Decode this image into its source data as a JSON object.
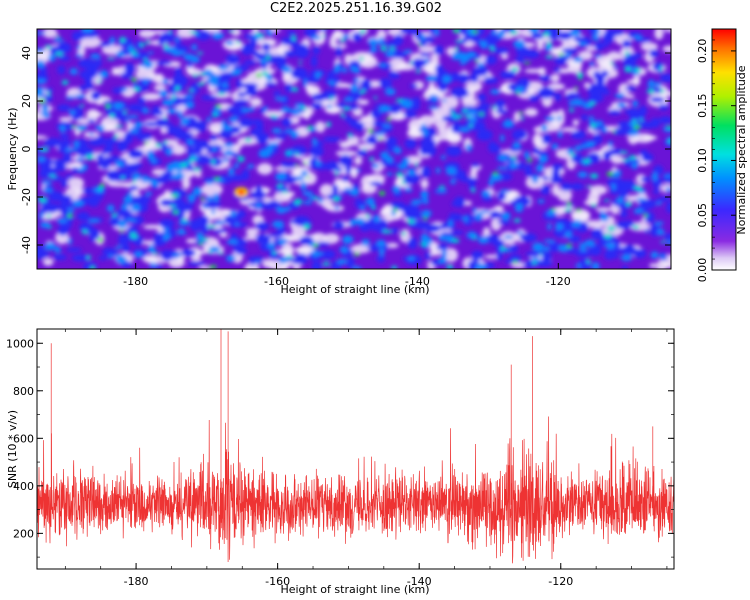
{
  "title": "C2E2.2025.251.16.39.G02",
  "chart_data": [
    {
      "type": "heatmap",
      "xlabel": "Height of straight line (km)",
      "ylabel": "Frequency (Hz)",
      "xlim": [
        -194,
        -104
      ],
      "ylim": [
        -50,
        50
      ],
      "xticks": [
        -180,
        -160,
        -140,
        -120
      ],
      "yticks": [
        -40,
        -20,
        0,
        20,
        40
      ],
      "colorbar": {
        "label": "Normalized spectral amplitude",
        "range": [
          0.0,
          0.22
        ],
        "ticks": [
          0.0,
          0.05,
          0.1,
          0.15,
          0.2
        ],
        "tick_labels": [
          "0.00",
          "0.05",
          "0.10",
          "0.15",
          "0.20"
        ]
      },
      "peak": {
        "x": -165,
        "y": -18,
        "value": 0.2
      }
    },
    {
      "type": "line",
      "xlabel": "Height of straight line (km)",
      "ylabel": "SNR (10 * v/v)",
      "xlim": [
        -194,
        -104
      ],
      "ylim": [
        50,
        1060
      ],
      "xticks": [
        -180,
        -160,
        -140,
        -120
      ],
      "yticks": [
        200,
        400,
        600,
        800,
        1000
      ],
      "color": "#ee3333",
      "baseline_mean": 320,
      "spikes": [
        {
          "x": -192,
          "y": 1000
        },
        {
          "x": -168,
          "y": 1060
        },
        {
          "x": -167,
          "y": 1050
        },
        {
          "x": -127,
          "y": 910
        },
        {
          "x": -124,
          "y": 1030
        },
        {
          "x": -107,
          "y": 650
        }
      ]
    }
  ]
}
